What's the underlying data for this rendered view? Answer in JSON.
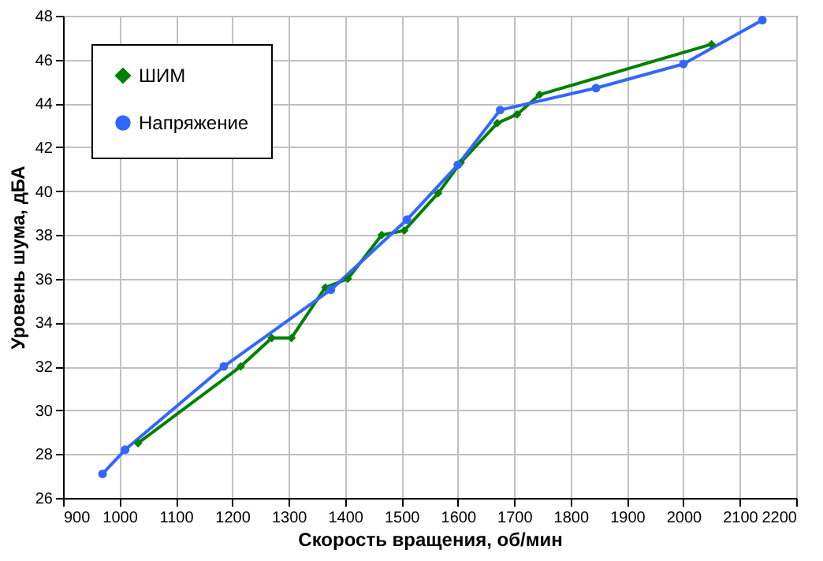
{
  "chart_data": {
    "type": "line",
    "xlabel": "Скорость вращения, об/мин",
    "ylabel": "Уровень шума, дБА",
    "xlim": [
      900,
      2200
    ],
    "xticks": [
      900,
      1000,
      1100,
      1200,
      1300,
      1400,
      1500,
      1600,
      1700,
      1800,
      1900,
      2000,
      2100,
      2200
    ],
    "ylim": [
      26,
      48
    ],
    "yticks": [
      26,
      28,
      30,
      32,
      34,
      36,
      38,
      40,
      42,
      44,
      46,
      48
    ],
    "grid": true,
    "legend": "top left",
    "series": [
      {
        "name": "ШИМ",
        "color": "#008000",
        "marker": "diamond",
        "x": [
          1033,
          1215,
          1270,
          1305,
          1365,
          1405,
          1465,
          1505,
          1565,
          1605,
          1670,
          1705,
          1745,
          2050
        ],
        "values": [
          28.5,
          32.0,
          33.3,
          33.3,
          35.6,
          36.0,
          38.0,
          38.2,
          39.9,
          41.3,
          43.1,
          43.5,
          44.4,
          46.7
        ]
      },
      {
        "name": "Напряжение",
        "color": "#3366ff",
        "marker": "circle",
        "x": [
          970,
          1010,
          1185,
          1375,
          1510,
          1600,
          1675,
          1845,
          2000,
          2140
        ],
        "values": [
          27.1,
          28.2,
          32.0,
          35.5,
          38.7,
          41.2,
          43.7,
          44.7,
          45.8,
          47.8
        ]
      }
    ]
  }
}
